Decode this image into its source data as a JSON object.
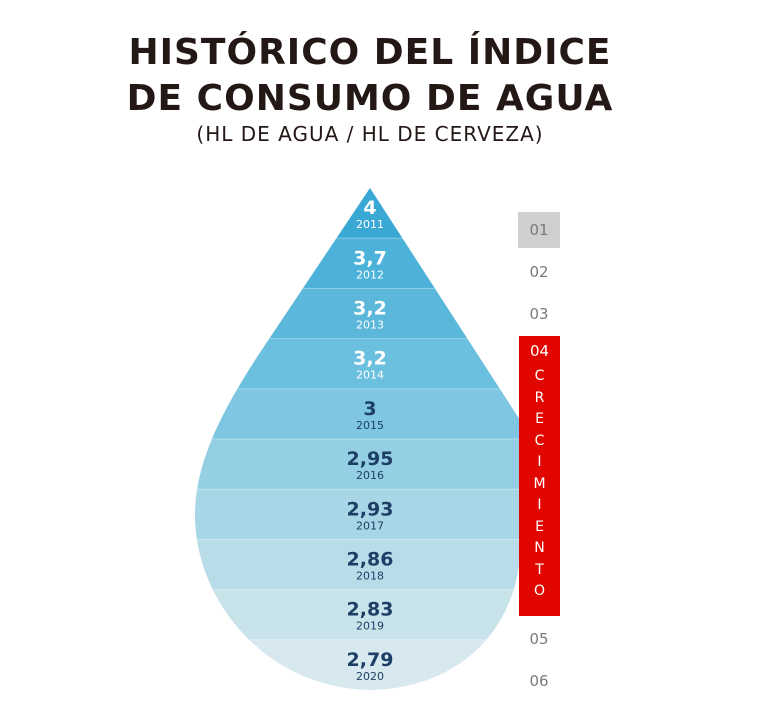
{
  "header": {
    "title_line1": "HISTÓRICO DEL ÍNDICE",
    "title_line2": "DE CONSUMO DE AGUA",
    "subtitle": "(HL DE AGUA / HL DE CERVEZA)"
  },
  "chart_data": {
    "type": "bar",
    "title": "HISTÓRICO DEL ÍNDICE DE CONSUMO DE AGUA",
    "subtitle": "(HL DE AGUA / HL DE CERVEZA)",
    "categories": [
      "2011",
      "2012",
      "2013",
      "2014",
      "2015",
      "2016",
      "2017",
      "2018",
      "2019",
      "2020"
    ],
    "values": [
      4,
      3.7,
      3.2,
      3.2,
      3,
      2.95,
      2.93,
      2.86,
      2.83,
      2.79
    ],
    "value_labels": [
      "4",
      "3,7",
      "3,2",
      "3,2",
      "3",
      "2,95",
      "2,93",
      "2,86",
      "2,83",
      "2,79"
    ],
    "colors": [
      "#3aa8d4",
      "#4cb2d9",
      "#5cb8da",
      "#6bc0df",
      "#7ec6e1",
      "#94cfe3",
      "#a7d6e6",
      "#b8dde8",
      "#c9e3ea",
      "#d7e8ee"
    ],
    "label_colors": [
      "#ffffff",
      "#ffffff",
      "#ffffff",
      "#ffffff",
      "#1d3f66",
      "#1d3f66",
      "#1d3f66",
      "#1d3f66",
      "#1d3f66",
      "#1d3f66"
    ]
  },
  "navigation": {
    "items": [
      "01",
      "02",
      "03",
      "04",
      "05",
      "06"
    ],
    "active_index": 3,
    "active_label": "CRECIMIENTO",
    "active_letters": [
      "C",
      "R",
      "E",
      "C",
      "I",
      "M",
      "I",
      "E",
      "N",
      "T",
      "O"
    ],
    "active_color": "#e10600",
    "highlight_color": "#cfcfcf"
  }
}
